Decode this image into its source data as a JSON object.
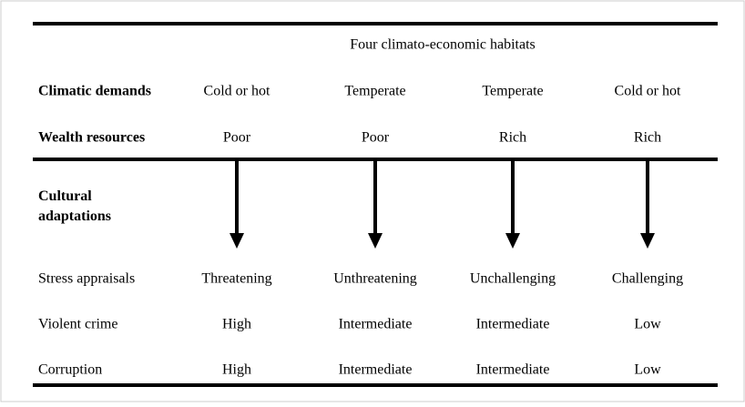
{
  "header": {
    "title": "Four climato-economic habitats"
  },
  "rows_top": [
    {
      "label": "Climatic demands",
      "cells": [
        "Cold or hot",
        "Temperate",
        "Temperate",
        "Cold or hot"
      ]
    },
    {
      "label": "Wealth resources",
      "cells": [
        "Poor",
        "Poor",
        "Rich",
        "Rich"
      ]
    }
  ],
  "adaptations": {
    "label": "Cultural adaptations"
  },
  "rows_bottom": [
    {
      "label": "Stress appraisals",
      "cells": [
        "Threatening",
        "Unthreatening",
        "Unchallenging",
        "Challenging"
      ]
    },
    {
      "label": "Violent crime",
      "cells": [
        "High",
        "Intermediate",
        "Intermediate",
        "Low"
      ]
    },
    {
      "label": "Corruption",
      "cells": [
        "High",
        "Intermediate",
        "Intermediate",
        "Low"
      ]
    }
  ]
}
